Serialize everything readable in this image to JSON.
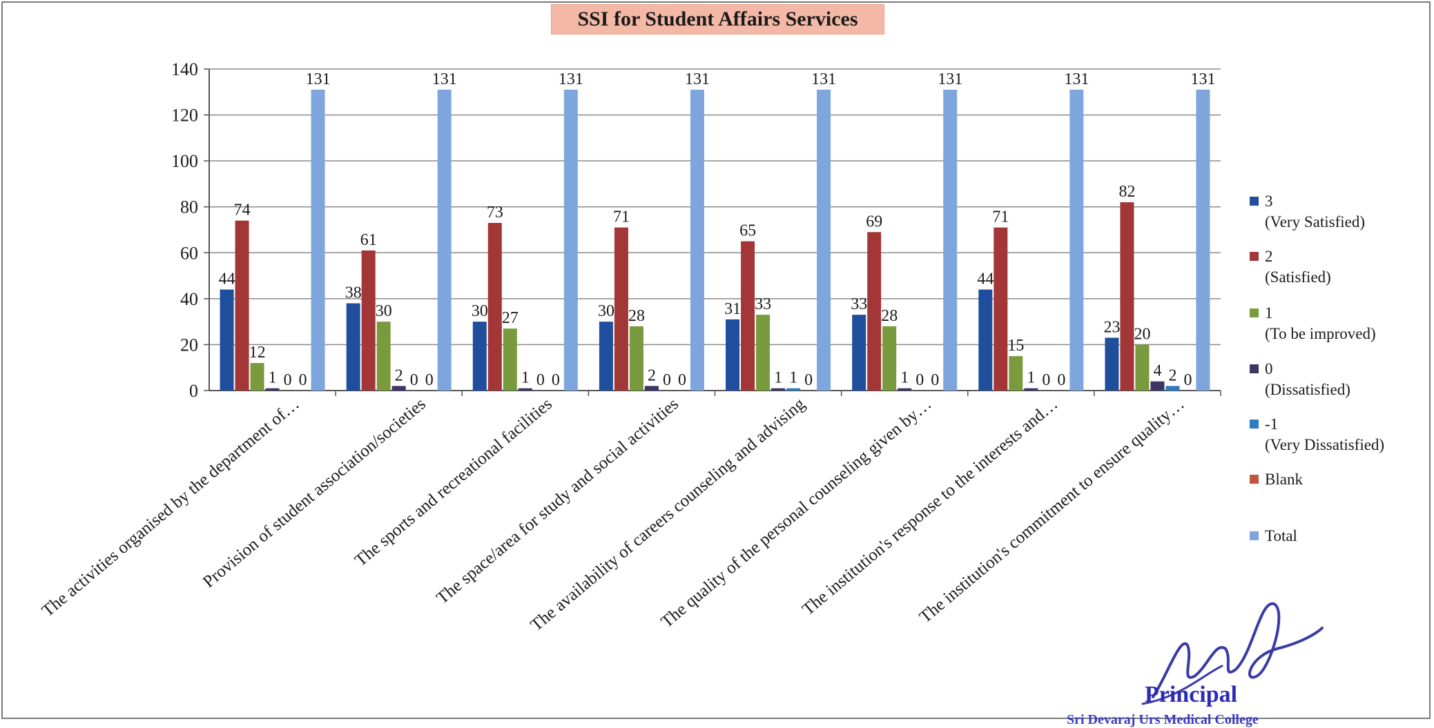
{
  "chart_data": {
    "type": "bar",
    "title": "SSI for Student Affairs Services",
    "xlabel": "",
    "ylabel": "",
    "ylim": [
      0,
      140
    ],
    "yticks": [
      0,
      20,
      40,
      60,
      80,
      100,
      120,
      140
    ],
    "grid": true,
    "legend_position": "right",
    "categories": [
      "The activities organised by the department of…",
      "Provision of student association/societies",
      "The sports and recreational facilities",
      "The space/area for study and social activities",
      "The availability of careers counseling and advising",
      "The quality of the personal counseling given by…",
      "The institution's response to the interests and…",
      "The institution's commitment to ensure quality…"
    ],
    "series": [
      {
        "name": "3",
        "name_sub": "(Very Satisfied)",
        "color": "#1f4e9c",
        "values": [
          44,
          38,
          30,
          30,
          31,
          33,
          44,
          23
        ]
      },
      {
        "name": "2",
        "name_sub": "(Satisfied)",
        "color": "#a33636",
        "values": [
          74,
          61,
          73,
          71,
          65,
          69,
          71,
          82
        ]
      },
      {
        "name": "1",
        "name_sub": "(To be improved)",
        "color": "#7a9a3e",
        "values": [
          12,
          30,
          27,
          28,
          33,
          28,
          15,
          20
        ]
      },
      {
        "name": "0",
        "name_sub": "(Dissatisfied)",
        "color": "#3e3466",
        "values": [
          1,
          2,
          1,
          2,
          1,
          1,
          1,
          4
        ]
      },
      {
        "name": "-1",
        "name_sub": "(Very Dissatisfied)",
        "color": "#2e7cc4",
        "values": [
          0,
          0,
          0,
          0,
          1,
          0,
          0,
          2
        ]
      },
      {
        "name": "Blank",
        "name_sub": "",
        "color": "#c05540",
        "values": [
          0,
          0,
          0,
          0,
          0,
          0,
          0,
          0
        ]
      },
      {
        "name": "Total",
        "name_sub": "",
        "color": "#7ea6dc",
        "values": [
          131,
          131,
          131,
          131,
          131,
          131,
          131,
          131
        ]
      }
    ],
    "data_labels": [
      [
        "44",
        "74",
        "12",
        "1",
        "0",
        "0",
        "131"
      ],
      [
        "38",
        "61",
        "30",
        "2",
        "0",
        "0",
        "131"
      ],
      [
        "30",
        "73",
        "27",
        "1",
        "0",
        "0",
        "131"
      ],
      [
        "30",
        "71",
        "28",
        "2",
        "0",
        "0",
        "131"
      ],
      [
        "31",
        "65",
        "33",
        "1",
        "1",
        "0",
        "131"
      ],
      [
        "33",
        "69",
        "28",
        "1",
        "0",
        "0",
        "131"
      ],
      [
        "44",
        "71",
        "15",
        "1",
        "0",
        "0",
        "131"
      ],
      [
        "23",
        "82",
        "20",
        "4",
        "2",
        "0",
        "131"
      ]
    ]
  },
  "signature": {
    "title": "Principal",
    "institution": "Sri Devaraj Urs Medical College"
  }
}
